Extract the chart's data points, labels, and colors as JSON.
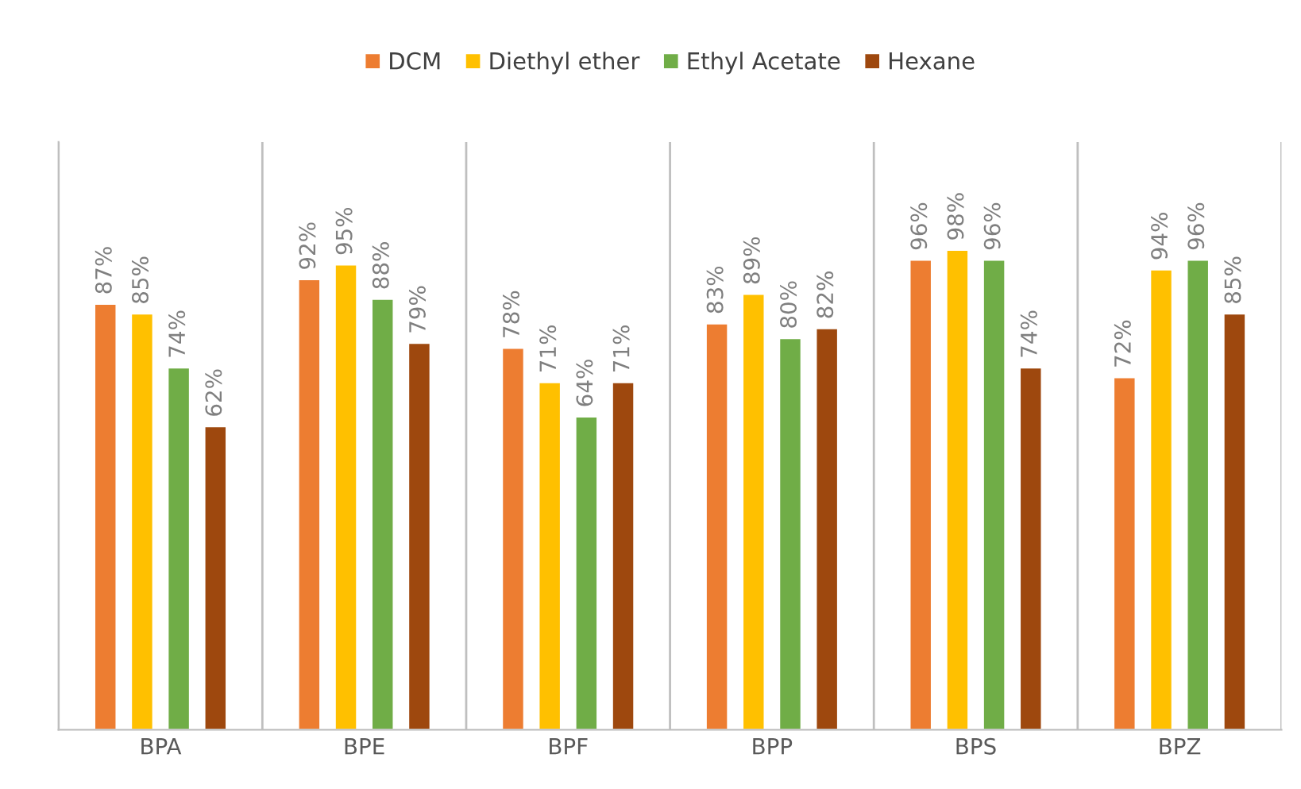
{
  "chart_data": {
    "type": "bar",
    "categories": [
      "BPA",
      "BPE",
      "BPF",
      "BPP",
      "BPS",
      "BPZ"
    ],
    "series": [
      {
        "name": "DCM",
        "color": "#ed7d31",
        "values": [
          87,
          92,
          78,
          83,
          96,
          72
        ],
        "value_labels": [
          "87%",
          "92%",
          "78%",
          "83%",
          "96%",
          "72%"
        ]
      },
      {
        "name": "Diethyl ether",
        "color": "#ffc000",
        "values": [
          85,
          95,
          71,
          89,
          98,
          94
        ],
        "value_labels": [
          "85%",
          "95%",
          "71%",
          "89%",
          "98%",
          "94%"
        ]
      },
      {
        "name": "Ethyl Acetate",
        "color": "#70ad47",
        "values": [
          74,
          88,
          64,
          80,
          96,
          96
        ],
        "value_labels": [
          "74%",
          "88%",
          "64%",
          "80%",
          "96%",
          "96%"
        ]
      },
      {
        "name": "Hexane",
        "color": "#9e480e",
        "values": [
          62,
          79,
          71,
          82,
          74,
          85
        ],
        "value_labels": [
          "62%",
          "79%",
          "71%",
          "82%",
          "74%",
          "85%"
        ]
      }
    ],
    "ylim": [
      0,
      120
    ],
    "tick_labels": "x",
    "grid": "x",
    "legend": "top"
  }
}
